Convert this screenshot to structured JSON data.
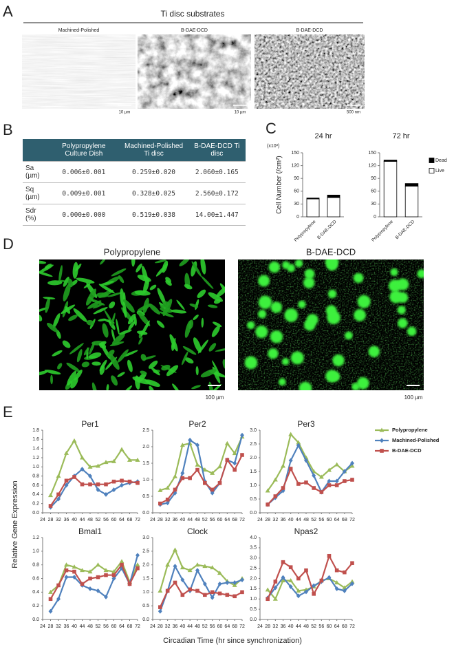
{
  "panel_labels": [
    "A",
    "B",
    "C",
    "D",
    "E"
  ],
  "panel_a": {
    "title": "Ti disc substrates",
    "images": [
      {
        "label": "Machined-Polished",
        "scale": "10 µm"
      },
      {
        "label": "B-DAE-DCD",
        "scale": "10 µm"
      },
      {
        "label": "B-DAE-DCD",
        "scale": "500 nm"
      }
    ]
  },
  "table_b": {
    "columns": [
      "Polypropylene Culture Dish",
      "Machined-Polished Ti disc",
      "B-DAE-DCD Ti disc"
    ],
    "rows": [
      [
        "Sa (µm)",
        "0.006±0.001",
        "0.259±0.020",
        "2.060±0.165"
      ],
      [
        "Sq (µm)",
        "0.009±0.001",
        "0.328±0.025",
        "2.560±0.172"
      ],
      [
        "Sdr (%)",
        "0.000±0.000",
        "0.519±0.038",
        "14.00±1.447"
      ]
    ]
  },
  "panel_d": {
    "images": [
      {
        "label": "Polypropylene",
        "scale": "100 µm"
      },
      {
        "label": "B-DAE-DCD",
        "scale": "100 µm"
      }
    ]
  },
  "panel_e": {
    "ylabel": "Relative Gene Expression",
    "xlabel": "Circadian Time (hr since synchronization)"
  },
  "chart_data": [
    {
      "type": "bar",
      "stacked": true,
      "title": "24 hr",
      "ylabel": "Cell Number (/cm²)",
      "multiplier": "(x10³)",
      "categories": [
        "Polypropylene",
        "B-DAE-DCD"
      ],
      "series": [
        {
          "color": "#ffffff",
          "values": [
            42,
            45
          ]
        },
        {
          "color": "#000000",
          "values": [
            2,
            6
          ]
        }
      ],
      "ylim": [
        0,
        150
      ],
      "yticks": [
        0,
        30,
        60,
        90,
        120,
        150
      ]
    },
    {
      "type": "bar",
      "stacked": true,
      "title": "72 hr",
      "categories": [
        "Polypropylene",
        "B-DAE-DCD"
      ],
      "series": [
        {
          "name": "Live",
          "color": "#ffffff",
          "values": [
            130,
            72
          ]
        },
        {
          "name": "Dead",
          "color": "#000000",
          "values": [
            3,
            6
          ]
        }
      ],
      "ylim": [
        0,
        150
      ],
      "yticks": [
        0,
        30,
        60,
        90,
        120,
        150
      ]
    },
    {
      "type": "line",
      "title": "Per1",
      "x": [
        28,
        32,
        36,
        40,
        44,
        48,
        52,
        56,
        60,
        64,
        68,
        72
      ],
      "series": [
        {
          "name": "Polypropylene",
          "color": "#9bbb59",
          "values": [
            0.38,
            0.8,
            1.3,
            1.57,
            1.2,
            1.0,
            1.02,
            1.1,
            1.12,
            1.38,
            1.15,
            1.15
          ]
        },
        {
          "name": "Machined-Polished",
          "color": "#4f81bd",
          "values": [
            0.12,
            0.3,
            0.6,
            0.8,
            0.95,
            0.8,
            0.5,
            0.4,
            0.5,
            0.6,
            0.65,
            0.68
          ]
        },
        {
          "name": "B-DAE-DCD",
          "color": "#c0504d",
          "values": [
            0.15,
            0.4,
            0.7,
            0.78,
            0.62,
            0.62,
            0.62,
            0.62,
            0.68,
            0.7,
            0.68,
            0.65
          ]
        }
      ],
      "xlim": [
        24,
        72
      ],
      "xticks": [
        24,
        28,
        32,
        36,
        40,
        44,
        48,
        52,
        56,
        60,
        64,
        68,
        72
      ],
      "ylim": [
        0,
        1.8
      ],
      "yticks": [
        {
          "value": 0,
          "label": "0.0"
        },
        0.2,
        0.4,
        0.6,
        0.8,
        {
          "value": 1,
          "label": "1.0"
        },
        1.2,
        1.4,
        1.6,
        1.8
      ]
    },
    {
      "type": "line",
      "title": "Per2",
      "x": [
        28,
        32,
        36,
        40,
        44,
        48,
        52,
        56,
        60,
        64,
        68,
        72
      ],
      "series": [
        {
          "color": "#9bbb59",
          "values": [
            0.68,
            0.75,
            1.1,
            2.05,
            2.1,
            1.45,
            1.3,
            1.2,
            1.4,
            2.1,
            1.8,
            2.3
          ]
        },
        {
          "color": "#4f81bd",
          "values": [
            0.25,
            0.3,
            0.6,
            1.2,
            2.2,
            2.05,
            0.95,
            0.6,
            0.9,
            1.6,
            1.5,
            2.35
          ]
        },
        {
          "color": "#c0504d",
          "values": [
            0.28,
            0.4,
            0.7,
            1.05,
            1.05,
            1.3,
            0.9,
            0.7,
            0.9,
            1.6,
            1.3,
            1.75
          ]
        }
      ],
      "xlim": [
        24,
        72
      ],
      "xticks": [
        24,
        28,
        32,
        36,
        40,
        44,
        48,
        52,
        56,
        60,
        64,
        68,
        72
      ],
      "ylim": [
        0,
        2.5
      ],
      "yticks": [
        {
          "value": 0,
          "label": "0.0"
        },
        0.5,
        {
          "value": 1,
          "label": "1.0"
        },
        1.5,
        {
          "value": 2,
          "label": "2.0"
        },
        2.5
      ]
    },
    {
      "type": "line",
      "title": "Per3",
      "x": [
        28,
        32,
        36,
        40,
        44,
        48,
        52,
        56,
        60,
        64,
        68,
        72
      ],
      "series": [
        {
          "color": "#9bbb59",
          "values": [
            0.8,
            1.2,
            1.7,
            2.85,
            2.55,
            2.0,
            1.5,
            1.3,
            1.55,
            1.75,
            1.5,
            1.7
          ]
        },
        {
          "color": "#4f81bd",
          "values": [
            0.3,
            0.55,
            0.8,
            1.9,
            2.45,
            1.9,
            1.35,
            0.75,
            1.15,
            1.15,
            1.5,
            1.8
          ]
        },
        {
          "color": "#c0504d",
          "values": [
            0.3,
            0.6,
            0.9,
            1.6,
            1.05,
            1.1,
            0.9,
            0.75,
            1.0,
            1.0,
            1.15,
            1.2
          ]
        }
      ],
      "xlim": [
        24,
        72
      ],
      "xticks": [
        24,
        28,
        32,
        36,
        40,
        44,
        48,
        52,
        56,
        60,
        64,
        68,
        72
      ],
      "ylim": [
        0,
        3
      ],
      "yticks": [
        {
          "value": 0,
          "label": "0.0"
        },
        0.5,
        {
          "value": 1,
          "label": "1.0"
        },
        1.5,
        {
          "value": 2,
          "label": "2.0"
        },
        2.5,
        {
          "value": 3,
          "label": "3.0"
        }
      ]
    },
    {
      "type": "line",
      "title": "Bmal1",
      "x": [
        28,
        32,
        36,
        40,
        44,
        48,
        52,
        56,
        60,
        64,
        68,
        72
      ],
      "series": [
        {
          "color": "#9bbb59",
          "values": [
            0.4,
            0.5,
            0.8,
            0.77,
            0.72,
            0.7,
            0.8,
            0.72,
            0.7,
            0.85,
            0.55,
            0.8
          ]
        },
        {
          "color": "#4f81bd",
          "values": [
            0.12,
            0.3,
            0.62,
            0.62,
            0.5,
            0.45,
            0.42,
            0.33,
            0.6,
            0.75,
            0.52,
            0.94
          ]
        },
        {
          "color": "#c0504d",
          "values": [
            0.3,
            0.5,
            0.72,
            0.7,
            0.52,
            0.6,
            0.62,
            0.65,
            0.65,
            0.8,
            0.52,
            0.75
          ]
        }
      ],
      "xlim": [
        24,
        72
      ],
      "xticks": [
        24,
        28,
        32,
        36,
        40,
        44,
        48,
        52,
        56,
        60,
        64,
        68,
        72
      ],
      "ylim": [
        0,
        1.2
      ],
      "yticks": [
        {
          "value": 0,
          "label": "0.0"
        },
        0.2,
        0.4,
        0.6,
        0.8,
        {
          "value": 1,
          "label": "1.0"
        },
        1.2
      ]
    },
    {
      "type": "line",
      "title": "Clock",
      "x": [
        28,
        32,
        36,
        40,
        44,
        48,
        52,
        56,
        60,
        64,
        68,
        72
      ],
      "series": [
        {
          "color": "#9bbb59",
          "values": [
            1.05,
            2.0,
            2.55,
            1.9,
            1.8,
            2.0,
            1.95,
            1.9,
            1.7,
            1.4,
            1.25,
            1.5
          ]
        },
        {
          "color": "#4f81bd",
          "values": [
            0.3,
            1.05,
            1.95,
            1.45,
            1.05,
            1.8,
            1.3,
            0.8,
            1.3,
            1.35,
            1.35,
            1.45
          ]
        },
        {
          "color": "#c0504d",
          "values": [
            0.45,
            1.05,
            1.35,
            0.9,
            1.1,
            1.05,
            0.9,
            1.0,
            0.95,
            0.9,
            0.85,
            1.0
          ]
        }
      ],
      "xlim": [
        24,
        72
      ],
      "xticks": [
        24,
        28,
        32,
        36,
        40,
        44,
        48,
        52,
        56,
        60,
        64,
        68,
        72
      ],
      "ylim": [
        0,
        3
      ],
      "yticks": [
        {
          "value": 0,
          "label": "0.0"
        },
        0.5,
        {
          "value": 1,
          "label": "1.0"
        },
        1.5,
        {
          "value": 2,
          "label": "2.0"
        },
        2.5,
        {
          "value": 3,
          "label": "3.0"
        }
      ]
    },
    {
      "type": "line",
      "title": "Npas2",
      "x": [
        28,
        32,
        36,
        40,
        44,
        48,
        52,
        56,
        60,
        64,
        68,
        72
      ],
      "series": [
        {
          "color": "#9bbb59",
          "values": [
            1.45,
            1.0,
            1.9,
            1.9,
            1.4,
            1.45,
            1.6,
            1.9,
            2.0,
            1.8,
            1.55,
            1.85
          ]
        },
        {
          "color": "#4f81bd",
          "values": [
            1.05,
            1.55,
            2.05,
            1.6,
            1.15,
            1.35,
            1.65,
            1.85,
            2.05,
            1.5,
            1.4,
            1.75
          ]
        },
        {
          "color": "#c0504d",
          "values": [
            1.0,
            1.85,
            2.8,
            2.55,
            2.0,
            2.4,
            1.25,
            1.9,
            3.1,
            2.4,
            2.3,
            2.75
          ]
        }
      ],
      "xlim": [
        24,
        72
      ],
      "xticks": [
        24,
        28,
        32,
        36,
        40,
        44,
        48,
        52,
        56,
        60,
        64,
        68,
        72
      ],
      "ylim": [
        0,
        4
      ],
      "yticks": [
        {
          "value": 0,
          "label": "0.0"
        },
        0.5,
        {
          "value": 1,
          "label": "1.0"
        },
        1.5,
        {
          "value": 2,
          "label": "2.0"
        },
        2.5,
        {
          "value": 3,
          "label": "3.0"
        },
        3.5,
        {
          "value": 4,
          "label": "4.0"
        }
      ]
    }
  ]
}
